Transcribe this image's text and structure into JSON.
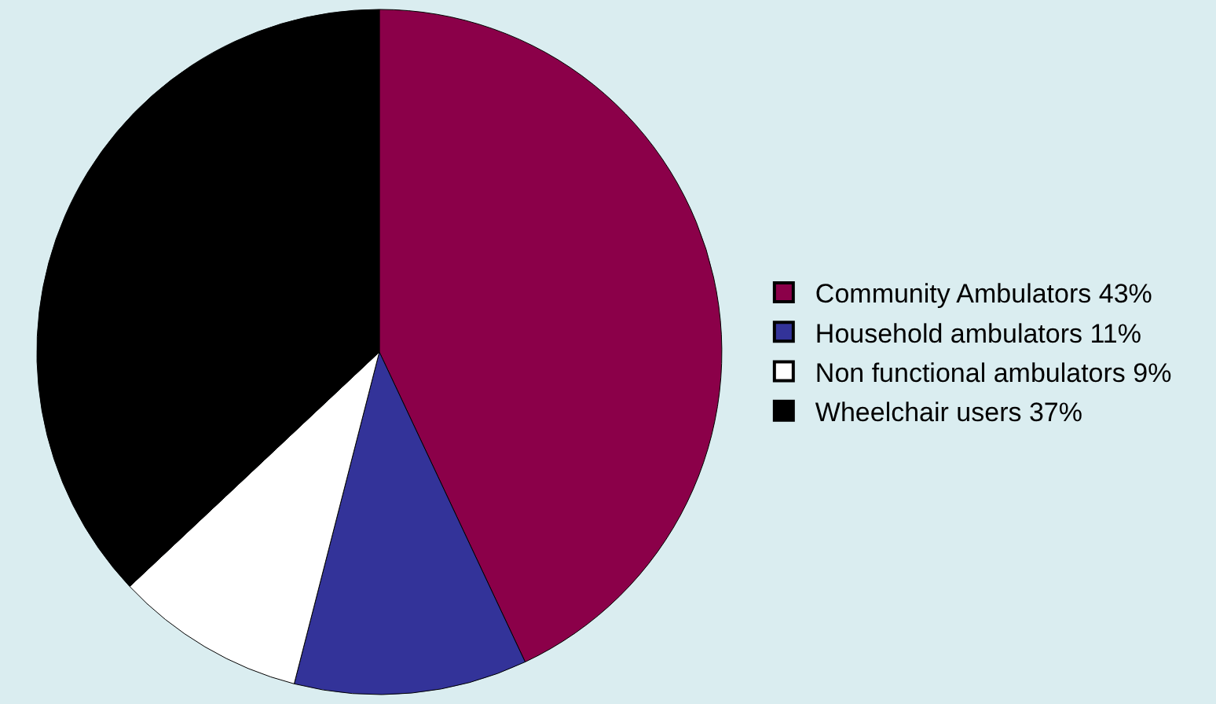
{
  "chart_data": {
    "type": "pie",
    "categories": [
      "Community Ambulators 43%",
      "Household ambulators 11%",
      "Non functional ambulators 9%",
      "Wheelchair users 37%"
    ],
    "values": [
      43,
      11,
      9,
      37
    ],
    "colors": [
      "#8b0049",
      "#333399",
      "#ffffff",
      "#000000"
    ],
    "legend": "right"
  }
}
